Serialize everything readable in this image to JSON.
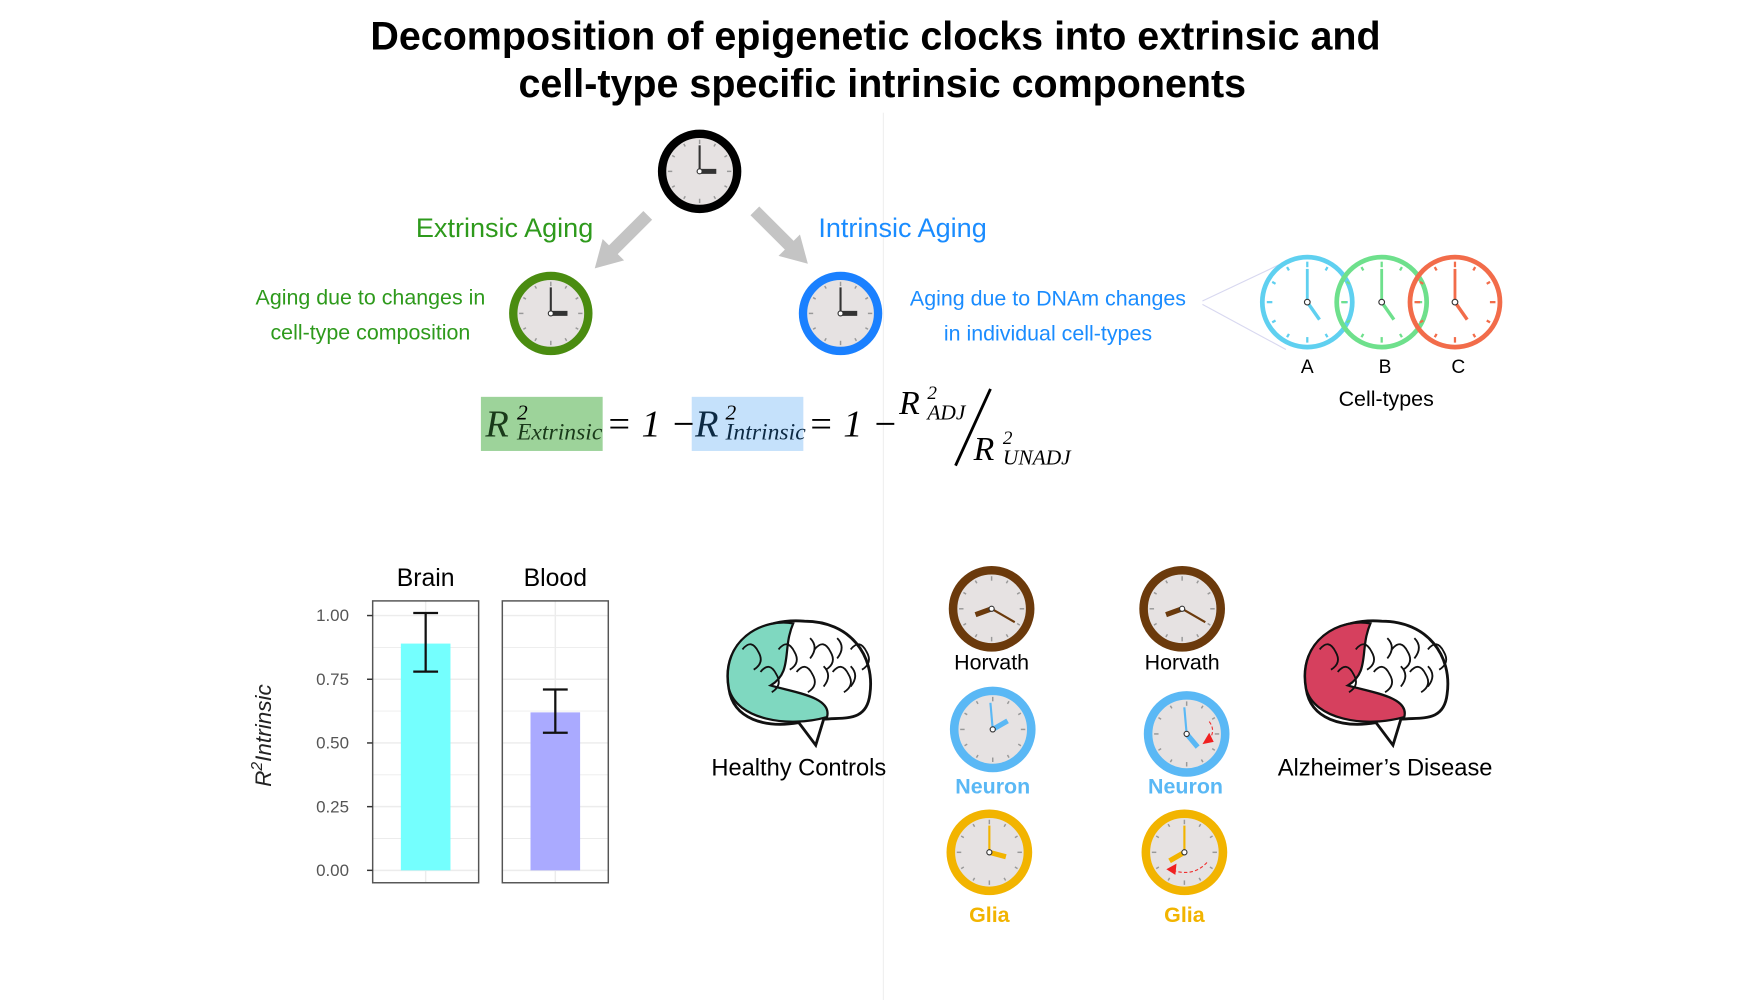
{
  "title": [
    "Decomposition of epigenetic clocks into extrinsic and",
    "cell-type specific intrinsic components"
  ],
  "extrinsic": {
    "heading": "Extrinsic Aging",
    "desc": [
      "Aging due to changes in",
      "cell-type composition"
    ],
    "color": "#2e9a1c"
  },
  "intrinsic": {
    "heading": "Intrinsic Aging",
    "desc": [
      "Aging due to DNAm changes",
      "in individual cell-types"
    ],
    "color": "#1a8cff"
  },
  "cell_types": {
    "labels": [
      "A",
      "B",
      "C"
    ],
    "caption": "Cell-types",
    "colors": [
      "#5fd0f0",
      "#6ee08c",
      "#f26c4a"
    ]
  },
  "equation": {
    "r": "R",
    "sq": "2",
    "extrinsic": "Extrinsic",
    "intrinsic": "Intrinsic",
    "adj": "ADJ",
    "unadj": "UNADJ",
    "eq1": "= 1 −",
    "eq2": "= 1 −",
    "slash": "/"
  },
  "chart_data": {
    "type": "bar",
    "categories": [
      "Brain",
      "Blood"
    ],
    "values": [
      0.89,
      0.62
    ],
    "error_low": [
      0.78,
      0.54
    ],
    "error_high": [
      1.01,
      0.71
    ],
    "colors": [
      "#74fffe",
      "#aaaaff"
    ],
    "ylabel": "R2Intrinsic",
    "ylabel_base": "R",
    "ylabel_sup": "2",
    "ylabel_sub": "Intrinsic",
    "ylim": [
      0,
      1.05
    ],
    "yticks": [
      "0.00",
      "0.25",
      "0.50",
      "0.75",
      "1.00"
    ],
    "grid": true
  },
  "groups": {
    "healthy": {
      "label": "Healthy Controls",
      "color": "#7fd8c0"
    },
    "ad": {
      "label": "Alzheimer’s Disease",
      "color": "#d6405e"
    }
  },
  "clocks": {
    "horvath": {
      "label": "Horvath",
      "color": "#6b3a0c"
    },
    "neuron": {
      "label": "Neuron",
      "color": "#5ab8f5"
    },
    "glia": {
      "label": "Glia",
      "color": "#f2b400"
    }
  }
}
